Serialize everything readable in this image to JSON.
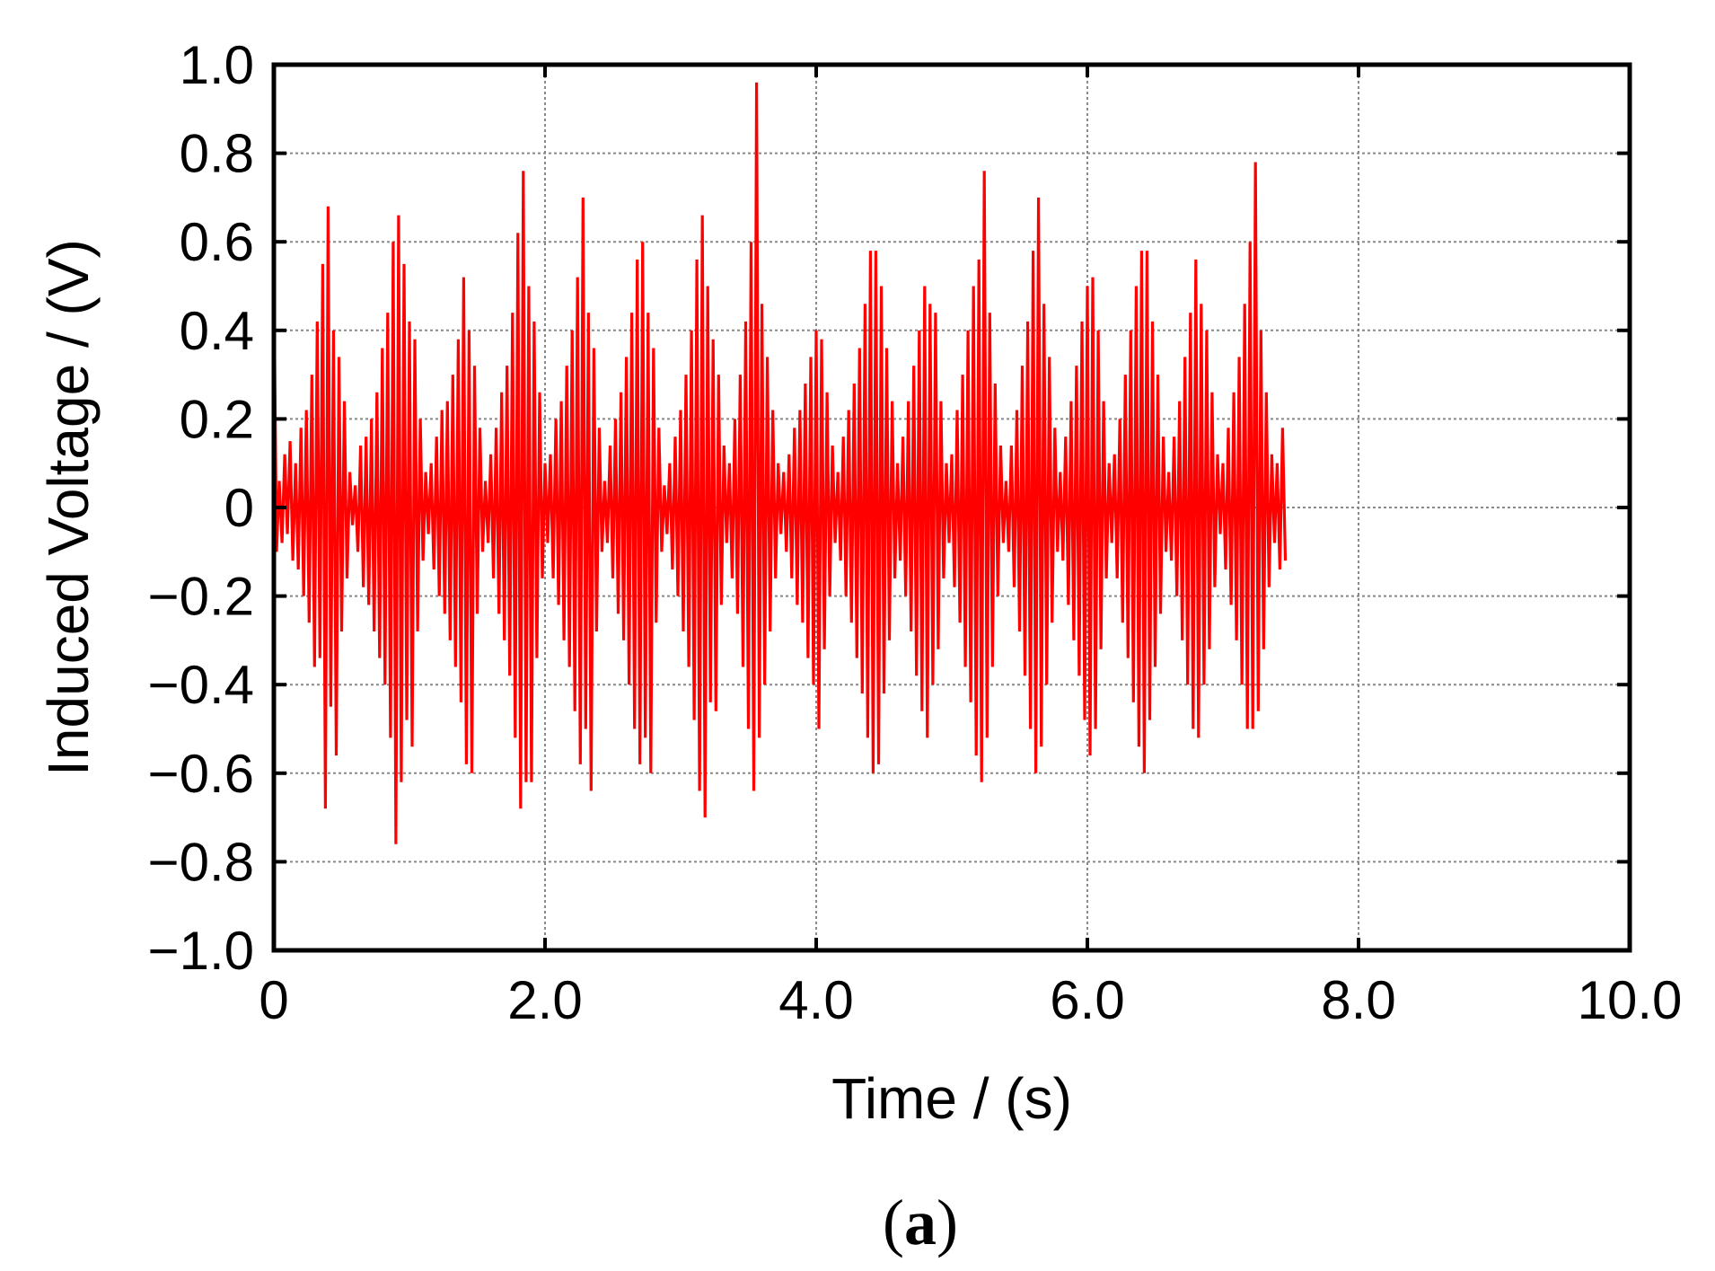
{
  "chart_data": {
    "type": "line",
    "xlabel": "Time / (s)",
    "ylabel": "Induced Voltage / (V)",
    "xlim": [
      0,
      10.0
    ],
    "ylim": [
      -1.0,
      1.0
    ],
    "grid": true,
    "xticks": [
      {
        "value": 0,
        "label": "0"
      },
      {
        "value": 2.0,
        "label": "2.0"
      },
      {
        "value": 4.0,
        "label": "4.0"
      },
      {
        "value": 6.0,
        "label": "6.0"
      },
      {
        "value": 8.0,
        "label": "8.0"
      },
      {
        "value": 10.0,
        "label": "10.0"
      }
    ],
    "yticks": [
      {
        "value": 1.0,
        "label": "1.0"
      },
      {
        "value": 0.8,
        "label": "0.8"
      },
      {
        "value": 0.6,
        "label": "0.6"
      },
      {
        "value": 0.4,
        "label": "0.4"
      },
      {
        "value": 0.2,
        "label": "0.2"
      },
      {
        "value": 0,
        "label": "0"
      },
      {
        "value": -0.2,
        "label": "−0.2"
      },
      {
        "value": -0.4,
        "label": "−0.4"
      },
      {
        "value": -0.6,
        "label": "−0.6"
      },
      {
        "value": -0.8,
        "label": "−0.8"
      },
      {
        "value": -1.0,
        "label": "−1.0"
      }
    ],
    "series": [
      {
        "color": "#ff0000",
        "sample_interval_s": 0.02,
        "values": [
          0.52,
          -0.1,
          0.06,
          -0.08,
          0.12,
          -0.06,
          0.15,
          -0.12,
          0.1,
          -0.14,
          0.18,
          -0.2,
          0.22,
          -0.26,
          0.3,
          -0.36,
          0.42,
          -0.34,
          0.55,
          -0.68,
          0.68,
          -0.45,
          0.4,
          -0.56,
          0.34,
          -0.28,
          0.24,
          -0.16,
          0.08,
          -0.04,
          0.05,
          -0.1,
          0.14,
          -0.18,
          0.16,
          -0.22,
          0.2,
          -0.28,
          0.26,
          -0.34,
          0.36,
          -0.4,
          0.44,
          -0.52,
          0.6,
          -0.76,
          0.66,
          -0.62,
          0.55,
          -0.48,
          0.42,
          -0.54,
          0.38,
          -0.28,
          0.2,
          -0.12,
          0.08,
          -0.06,
          0.1,
          -0.14,
          0.16,
          -0.2,
          0.22,
          -0.24,
          0.24,
          -0.3,
          0.3,
          -0.36,
          0.38,
          -0.44,
          0.52,
          -0.58,
          0.4,
          -0.6,
          0.32,
          -0.24,
          0.18,
          -0.1,
          0.06,
          -0.08,
          0.12,
          -0.16,
          0.18,
          -0.24,
          0.26,
          -0.3,
          0.32,
          -0.38,
          0.44,
          -0.52,
          0.62,
          -0.68,
          0.76,
          -0.62,
          0.5,
          -0.62,
          0.42,
          -0.34,
          0.26,
          -0.16,
          0.1,
          -0.08,
          0.12,
          -0.16,
          0.2,
          -0.22,
          0.24,
          -0.3,
          0.32,
          -0.36,
          0.4,
          -0.46,
          0.52,
          -0.58,
          0.7,
          -0.5,
          0.44,
          -0.64,
          0.36,
          -0.28,
          0.18,
          -0.1,
          0.06,
          -0.08,
          0.14,
          -0.16,
          0.2,
          -0.24,
          0.26,
          -0.3,
          0.34,
          -0.4,
          0.44,
          -0.5,
          0.56,
          -0.58,
          0.6,
          -0.52,
          0.44,
          -0.6,
          0.36,
          -0.26,
          0.18,
          -0.1,
          0.05,
          -0.06,
          0.1,
          -0.14,
          0.16,
          -0.2,
          0.22,
          -0.28,
          0.3,
          -0.36,
          0.4,
          -0.48,
          0.56,
          -0.64,
          0.66,
          -0.7,
          0.5,
          -0.44,
          0.38,
          -0.46,
          0.3,
          -0.22,
          0.14,
          -0.08,
          0.1,
          -0.16,
          0.2,
          -0.24,
          0.3,
          -0.36,
          0.42,
          -0.5,
          0.6,
          -0.64,
          0.96,
          -0.52,
          0.46,
          -0.4,
          0.34,
          -0.28,
          0.22,
          -0.16,
          0.1,
          -0.06,
          0.08,
          -0.1,
          0.12,
          -0.16,
          0.18,
          -0.22,
          0.22,
          -0.26,
          0.28,
          -0.34,
          0.34,
          -0.4,
          0.4,
          -0.5,
          0.38,
          -0.32,
          0.26,
          -0.2,
          0.14,
          -0.08,
          0.08,
          -0.12,
          0.16,
          -0.2,
          0.22,
          -0.26,
          0.28,
          -0.34,
          0.36,
          -0.42,
          0.46,
          -0.52,
          0.58,
          -0.6,
          0.58,
          -0.58,
          0.5,
          -0.42,
          0.36,
          -0.3,
          0.24,
          -0.16,
          0.1,
          -0.12,
          0.16,
          -0.2,
          0.24,
          -0.28,
          0.32,
          -0.38,
          0.4,
          -0.46,
          0.5,
          -0.52,
          0.46,
          -0.4,
          0.44,
          -0.32,
          0.24,
          -0.16,
          0.1,
          -0.08,
          0.12,
          -0.18,
          0.22,
          -0.26,
          0.3,
          -0.36,
          0.4,
          -0.44,
          0.5,
          -0.56,
          0.56,
          -0.62,
          0.76,
          -0.52,
          0.44,
          -0.36,
          0.28,
          -0.2,
          0.14,
          -0.08,
          0.06,
          -0.1,
          0.14,
          -0.18,
          0.22,
          -0.28,
          0.32,
          -0.38,
          0.42,
          -0.5,
          0.58,
          -0.6,
          0.7,
          -0.54,
          0.46,
          -0.4,
          0.34,
          -0.26,
          0.18,
          -0.1,
          0.08,
          -0.12,
          0.16,
          -0.22,
          0.24,
          -0.3,
          0.32,
          -0.38,
          0.42,
          -0.48,
          0.5,
          -0.56,
          0.52,
          -0.5,
          0.4,
          -0.32,
          0.24,
          -0.16,
          0.1,
          -0.08,
          0.12,
          -0.16,
          0.2,
          -0.26,
          0.3,
          -0.34,
          0.4,
          -0.44,
          0.5,
          -0.54,
          0.58,
          -0.6,
          0.58,
          -0.48,
          0.42,
          -0.36,
          0.3,
          -0.24,
          0.16,
          -0.1,
          0.08,
          -0.12,
          0.16,
          -0.2,
          0.24,
          -0.3,
          0.34,
          -0.4,
          0.44,
          -0.5,
          0.56,
          -0.52,
          0.46,
          -0.4,
          0.4,
          -0.32,
          0.26,
          -0.18,
          0.12,
          -0.06,
          0.1,
          -0.14,
          0.18,
          -0.22,
          0.26,
          -0.3,
          0.34,
          -0.4,
          0.46,
          -0.5,
          0.6,
          -0.5,
          0.78,
          -0.46,
          0.4,
          -0.32,
          0.26,
          -0.18,
          0.12,
          -0.08,
          0.1,
          -0.14,
          0.18,
          -0.12
        ]
      }
    ]
  },
  "panel_label": {
    "open": "(",
    "letter": "a",
    "close": ")"
  }
}
